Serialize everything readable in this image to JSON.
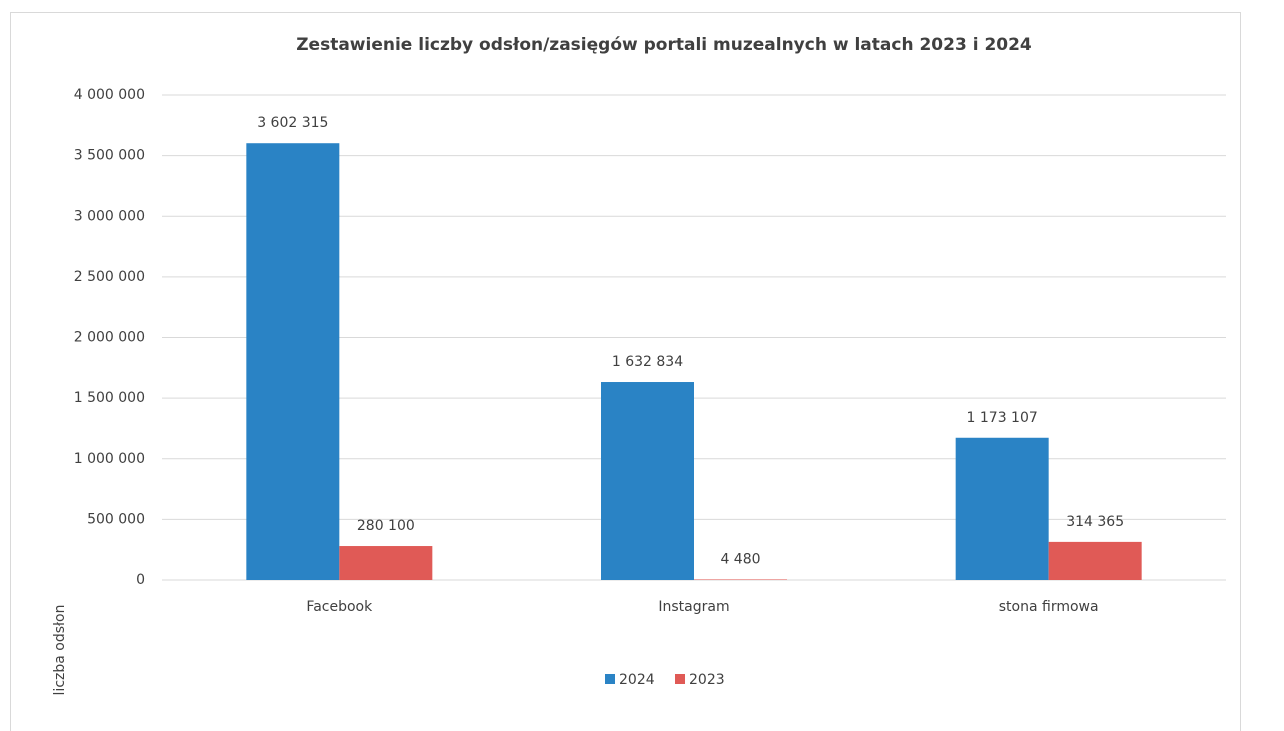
{
  "chart_data": {
    "type": "bar",
    "title": "Zestawienie liczby odsłon/zasięgów portali muzealnych w latach 2023 i 2024",
    "y_axis_label": "liczba odsłon",
    "categories": [
      "Facebook",
      "Instagram",
      "stona firmowa"
    ],
    "series": [
      {
        "name": "2024",
        "color": "#2a83c5",
        "values": [
          3602315,
          1632834,
          1173107
        ],
        "value_labels": [
          "3 602 315",
          "1 632 834",
          "1 173 107"
        ]
      },
      {
        "name": "2023",
        "color": "#e05a56",
        "values": [
          280100,
          4480,
          314365
        ],
        "value_labels": [
          "280 100",
          "4 480",
          "314 365"
        ]
      }
    ],
    "ylim": [
      0,
      4000000
    ],
    "yticks": [
      0,
      {
        "value": 500000,
        "label": "500 000"
      },
      {
        "value": 1000000,
        "label": "1 000 000"
      },
      {
        "value": 1500000,
        "label": "1 500 000"
      },
      {
        "value": 2000000,
        "label": "2 000 000"
      },
      {
        "value": 2500000,
        "label": "2 500 000"
      },
      {
        "value": 3000000,
        "label": "3 000 000"
      },
      {
        "value": 3500000,
        "label": "3 500 000"
      },
      {
        "value": 4000000,
        "label": "4 000 000"
      }
    ],
    "grid": true,
    "legend": "bottom"
  }
}
